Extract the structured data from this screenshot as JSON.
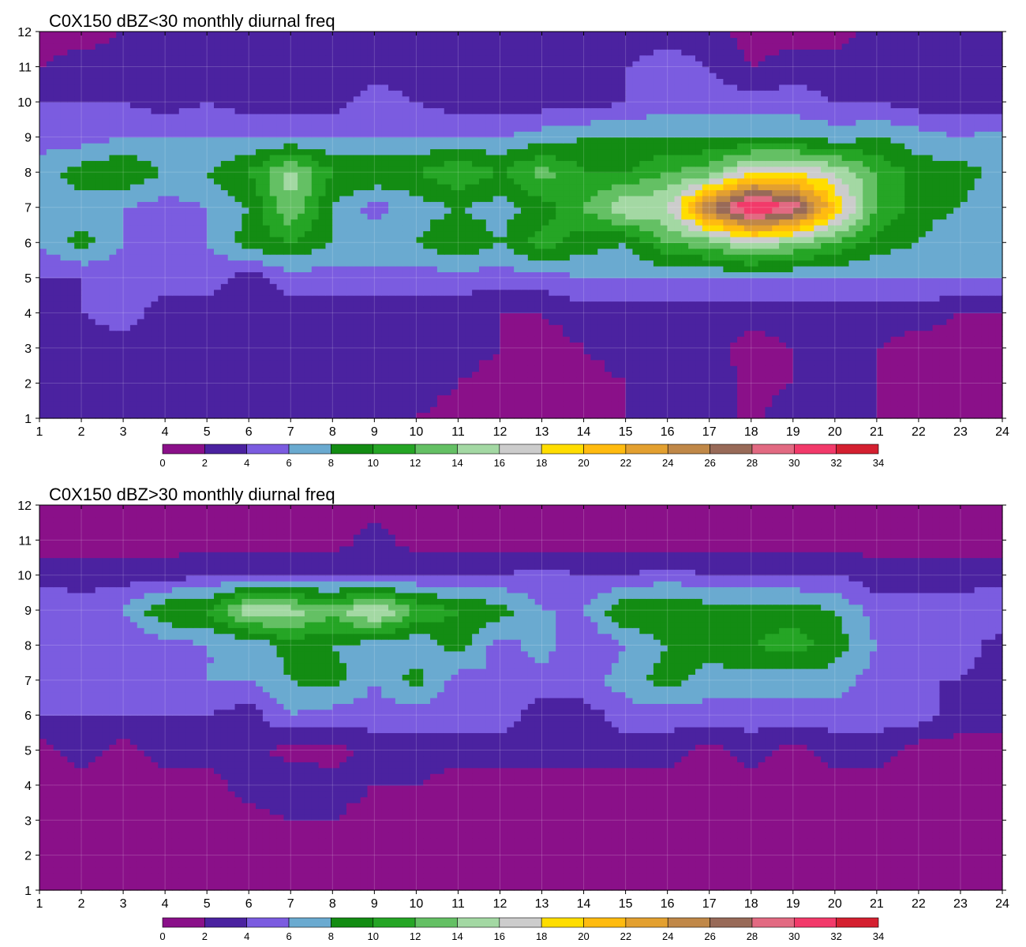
{
  "chart_data": [
    {
      "type": "heatmap",
      "title": "C0X150 dBZ<30 monthly diurnal freq",
      "xlabel": "",
      "ylabel": "",
      "xlim": [
        1,
        24
      ],
      "ylim": [
        1,
        12
      ],
      "x_ticks": [
        1,
        2,
        3,
        4,
        5,
        6,
        7,
        8,
        9,
        10,
        11,
        12,
        13,
        14,
        15,
        16,
        17,
        18,
        19,
        20,
        21,
        22,
        23,
        24
      ],
      "y_ticks": [
        1,
        2,
        3,
        4,
        5,
        6,
        7,
        8,
        9,
        10,
        11,
        12
      ],
      "x": [
        1,
        2,
        3,
        4,
        5,
        6,
        7,
        8,
        9,
        10,
        11,
        12,
        13,
        14,
        15,
        16,
        17,
        18,
        19,
        20,
        21,
        22,
        23,
        24
      ],
      "y": [
        1,
        2,
        3,
        4,
        5,
        6,
        7,
        8,
        9,
        10,
        11,
        12
      ],
      "z": [
        [
          3,
          3.5,
          3,
          3,
          3,
          3.5,
          2.5,
          2,
          2,
          2,
          1,
          1,
          1,
          1,
          2,
          3,
          3,
          1.5,
          3,
          3,
          2,
          1,
          1,
          1
        ],
        [
          3,
          3.5,
          3,
          3,
          3,
          3,
          3,
          2,
          3,
          3,
          2,
          1,
          1,
          1,
          2,
          3,
          3,
          1.5,
          2,
          2,
          2,
          1,
          1,
          1
        ],
        [
          3,
          3,
          3,
          3,
          3,
          3,
          2.5,
          2,
          2,
          3,
          3,
          2,
          1,
          2,
          3,
          3,
          3,
          1,
          2,
          2,
          2,
          1,
          1,
          1
        ],
        [
          3,
          4,
          5,
          3,
          3,
          3,
          3,
          3,
          3,
          3,
          3,
          2,
          2,
          3,
          3,
          3,
          3,
          3,
          3,
          3,
          3,
          3,
          2,
          2
        ],
        [
          4,
          4,
          5,
          5,
          5,
          3,
          5,
          5,
          5,
          5,
          5,
          5,
          5,
          6,
          6,
          6,
          6,
          6,
          6,
          6,
          6,
          6,
          6,
          6
        ],
        [
          6,
          9,
          6,
          6,
          6,
          9,
          10,
          8,
          8,
          8,
          10,
          8,
          11,
          9,
          8,
          12,
          13,
          16,
          14,
          12,
          9,
          8,
          6,
          6
        ],
        [
          6,
          7,
          6,
          5,
          6,
          8,
          14,
          8,
          5,
          7,
          8,
          7,
          9,
          12,
          16,
          16,
          26,
          33,
          30,
          20,
          12,
          9,
          8,
          6
        ],
        [
          7,
          9,
          10,
          8,
          8,
          10,
          15,
          10,
          10,
          10,
          12,
          10,
          13,
          10,
          10,
          12,
          13,
          18,
          18,
          16,
          12,
          9,
          9,
          7
        ],
        [
          5,
          5,
          6,
          6,
          6,
          6,
          6,
          6,
          6,
          6,
          6,
          6,
          7,
          8,
          8,
          8,
          8,
          8,
          8,
          7,
          8,
          7,
          6,
          7
        ],
        [
          4,
          4,
          4,
          3,
          4,
          3,
          3,
          3,
          5,
          4,
          3,
          3,
          3,
          3,
          4,
          5,
          5,
          5,
          5,
          4,
          4,
          3,
          3,
          3
        ],
        [
          2,
          3,
          3,
          3,
          3,
          2,
          3,
          3,
          3,
          3,
          3,
          3,
          3,
          3,
          4,
          5,
          4,
          2,
          3,
          3,
          2,
          2,
          2,
          3
        ],
        [
          1,
          1,
          2,
          3,
          3,
          3,
          3,
          3,
          3,
          3,
          3,
          3,
          3,
          3,
          3,
          3,
          3,
          1,
          1,
          1,
          3,
          3,
          3,
          3
        ]
      ],
      "levels": [
        0,
        2,
        4,
        6,
        8,
        10,
        12,
        14,
        16,
        18,
        20,
        22,
        24,
        26,
        28,
        30,
        32,
        34
      ],
      "colors": [
        "#8a1089",
        "#4b22a0",
        "#7b5ce0",
        "#6aaad0",
        "#138c13",
        "#25a525",
        "#64c064",
        "#a3d8a3",
        "#cccccc",
        "#ffdd00",
        "#ffbb10",
        "#e3a030",
        "#c08848",
        "#986a58",
        "#e26a82",
        "#f23a6a",
        "#d42030"
      ]
    },
    {
      "type": "heatmap",
      "title": "C0X150 dBZ>30 monthly diurnal freq",
      "xlabel": "",
      "ylabel": "",
      "xlim": [
        1,
        24
      ],
      "ylim": [
        1,
        12
      ],
      "x_ticks": [
        1,
        2,
        3,
        4,
        5,
        6,
        7,
        8,
        9,
        10,
        11,
        12,
        13,
        14,
        15,
        16,
        17,
        18,
        19,
        20,
        21,
        22,
        23,
        24
      ],
      "y_ticks": [
        1,
        2,
        3,
        4,
        5,
        6,
        7,
        8,
        9,
        10,
        11,
        12
      ],
      "x": [
        1,
        2,
        3,
        4,
        5,
        6,
        7,
        8,
        9,
        10,
        11,
        12,
        13,
        14,
        15,
        16,
        17,
        18,
        19,
        20,
        21,
        22,
        23,
        24
      ],
      "y": [
        1,
        2,
        3,
        4,
        5,
        6,
        7,
        8,
        9,
        10,
        11,
        12
      ],
      "z": [
        [
          1,
          1,
          1,
          1,
          1,
          1,
          1,
          1,
          1,
          1,
          1,
          1,
          1,
          1,
          1,
          1,
          1,
          1,
          1,
          1,
          1,
          1,
          1,
          1
        ],
        [
          1,
          1,
          1,
          1,
          1,
          1,
          1,
          1,
          1,
          1,
          1,
          1,
          1,
          1,
          1,
          1,
          1,
          1,
          1,
          1,
          1,
          1,
          1,
          1
        ],
        [
          1,
          1,
          1,
          1,
          1,
          1,
          2,
          2,
          1,
          1,
          1,
          1,
          1,
          1,
          1,
          1,
          1,
          1,
          1,
          1,
          1,
          1,
          1,
          1
        ],
        [
          1,
          1,
          1,
          1,
          1,
          3,
          4,
          3,
          2,
          2,
          1,
          1,
          1,
          1,
          1,
          1,
          1,
          1,
          1,
          1,
          1,
          1,
          1,
          1
        ],
        [
          1,
          3,
          1,
          3,
          3,
          3,
          1,
          1,
          3,
          3,
          3,
          3,
          3,
          3,
          3,
          3,
          1,
          3,
          1,
          3,
          3,
          1,
          1,
          1
        ],
        [
          4,
          4,
          4,
          4,
          4,
          3,
          6,
          5,
          5,
          5,
          5,
          5,
          3,
          3,
          5,
          5,
          5,
          5,
          5,
          5,
          5,
          5,
          3,
          3
        ],
        [
          4,
          5,
          4,
          5,
          6,
          6,
          8,
          9,
          6,
          9,
          5,
          6,
          5,
          5,
          7,
          9,
          7,
          7,
          7,
          7,
          5,
          4,
          4,
          3
        ],
        [
          4,
          4,
          4,
          5,
          6,
          6,
          9,
          8,
          7,
          6,
          9,
          5,
          7,
          4,
          6,
          8,
          9,
          10,
          11,
          9,
          6,
          4,
          5,
          3
        ],
        [
          6,
          5,
          6,
          10,
          10,
          16,
          15,
          13,
          17,
          12,
          10,
          9,
          6,
          6,
          10,
          10,
          9,
          9,
          9,
          8,
          5,
          5,
          5,
          6
        ],
        [
          3,
          3,
          3,
          3,
          4,
          4,
          4,
          4,
          3,
          4,
          4,
          4,
          5,
          4,
          4,
          5,
          4,
          4,
          4,
          4,
          3,
          3,
          3,
          3
        ],
        [
          1,
          1,
          1,
          1,
          1,
          1,
          1,
          1,
          3,
          1,
          1,
          1,
          1,
          1,
          1,
          1,
          1,
          1,
          1,
          1,
          1,
          1,
          1,
          1
        ],
        [
          1,
          1,
          1,
          1,
          1,
          1,
          1,
          1,
          1,
          1,
          1,
          1,
          1,
          1,
          1,
          1,
          1,
          1,
          1,
          1,
          1,
          1,
          1,
          1
        ]
      ],
      "levels": [
        0,
        2,
        4,
        6,
        8,
        10,
        12,
        14,
        16,
        18,
        20,
        22,
        24,
        26,
        28,
        30,
        32,
        34
      ],
      "colors": [
        "#8a1089",
        "#4b22a0",
        "#7b5ce0",
        "#6aaad0",
        "#138c13",
        "#25a525",
        "#64c064",
        "#a3d8a3",
        "#cccccc",
        "#ffdd00",
        "#ffbb10",
        "#e3a030",
        "#c08848",
        "#986a58",
        "#e26a82",
        "#f23a6a",
        "#d42030"
      ]
    }
  ]
}
